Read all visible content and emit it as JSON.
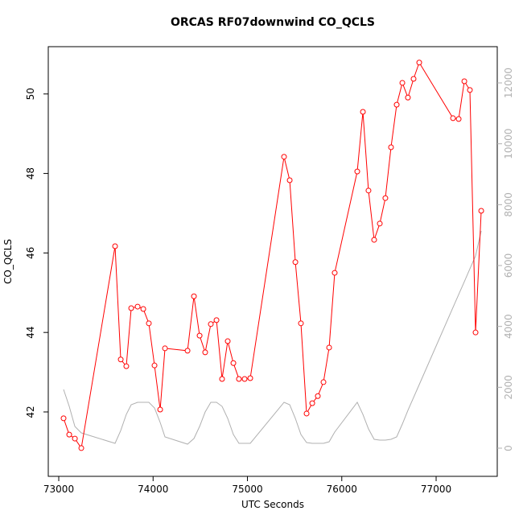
{
  "chart_data": {
    "type": "line",
    "title": "ORCAS RF07downwind CO_QCLS",
    "xlabel": "UTC Seconds",
    "ylabel": "CO_QCLS",
    "x": [
      73051,
      73111,
      73171,
      73239,
      73597,
      73657,
      73716,
      73768,
      73836,
      73896,
      73955,
      74015,
      74075,
      74126,
      74365,
      74433,
      74493,
      74552,
      74612,
      74672,
      74731,
      74791,
      74851,
      74910,
      74970,
      75030,
      75388,
      75448,
      75508,
      75567,
      75627,
      75687,
      75746,
      75806,
      75866,
      75925,
      76164,
      76224,
      76283,
      76343,
      76403,
      76462,
      76522,
      76582,
      76642,
      76701,
      76761,
      76821,
      77179,
      77239,
      77299,
      77358,
      77418,
      77478
    ],
    "series": [
      {
        "color": "#ff0000",
        "markers": true,
        "values": [
          41.84,
          41.43,
          41.33,
          41.09,
          46.17,
          43.32,
          43.15,
          44.61,
          44.65,
          44.59,
          44.23,
          43.17,
          42.06,
          43.6,
          43.54,
          44.91,
          43.92,
          43.5,
          44.21,
          44.31,
          42.83,
          43.78,
          43.23,
          42.83,
          42.83,
          42.85,
          48.42,
          47.83,
          45.77,
          44.23,
          41.96,
          42.22,
          42.4,
          42.75,
          43.62,
          45.5,
          48.05,
          49.55,
          47.57,
          46.33,
          46.74,
          47.38,
          48.66,
          49.73,
          50.28,
          49.91,
          50.38,
          50.79,
          49.39,
          49.37,
          50.32,
          50.1,
          44.0,
          47.06
        ]
      },
      {
        "color": "#b0b0b0",
        "axis": "y2",
        "markers": false,
        "values": [
          1930,
          1374,
          714,
          502,
          159,
          581,
          1110,
          1427,
          1507,
          1507,
          1507,
          1322,
          846,
          370,
          132,
          317,
          714,
          1189,
          1507,
          1507,
          1374,
          978,
          449,
          159,
          159,
          159,
          1507,
          1427,
          978,
          449,
          185,
          159,
          159,
          159,
          211,
          529,
          1507,
          1110,
          634,
          291,
          264,
          264,
          291,
          370,
          793,
          1242,
          1665,
          2088,
          4625,
          5048,
          5471,
          5894,
          6317,
          7136
        ]
      }
    ],
    "xlim": [
      72889,
      77648
    ],
    "xticks": [
      73000,
      74000,
      75000,
      76000,
      77000
    ],
    "ylim": [
      40.38,
      51.19
    ],
    "yticks": [
      42,
      44,
      46,
      48,
      50
    ],
    "y2lim": [
      -925,
      13190
    ],
    "y2ticks": [
      0,
      2000,
      4000,
      6000,
      8000,
      10000,
      12000
    ],
    "grid": false
  }
}
